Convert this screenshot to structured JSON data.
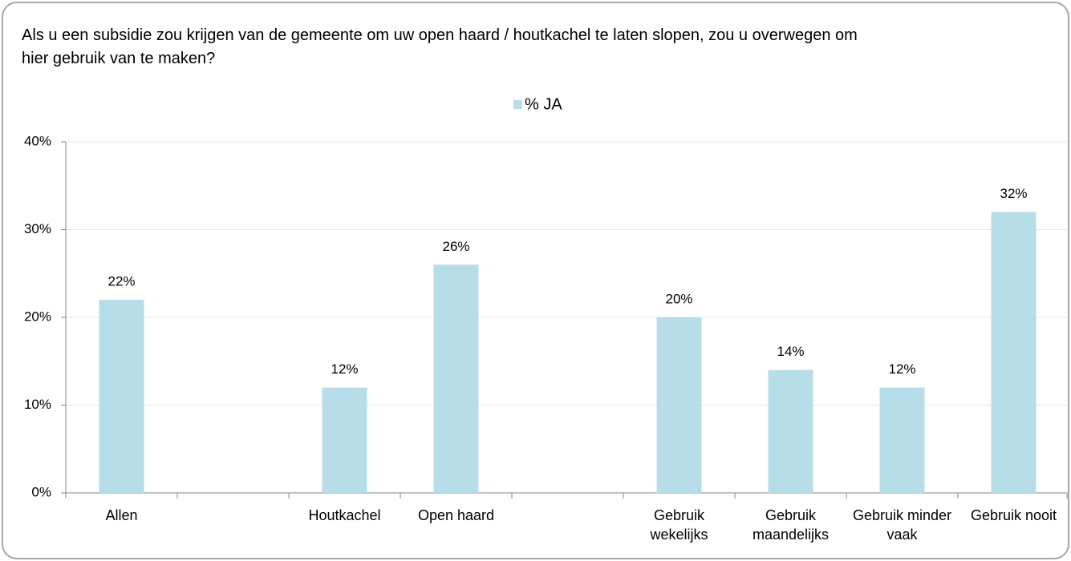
{
  "chart_data": {
    "type": "bar",
    "title": "Als u een subsidie zou krijgen van de gemeente om uw open haard / houtkachel te laten slopen, zou u overwegen om hier gebruik van te maken?",
    "categories": [
      "Allen",
      null,
      "Houtkachel",
      "Open haard",
      null,
      "Gebruik wekelijks",
      "Gebruik maandelijks",
      "Gebruik minder vaak",
      "Gebruik nooit"
    ],
    "series": [
      {
        "name": "% JA",
        "color": "#b7dde8",
        "values": [
          22,
          null,
          12,
          26,
          null,
          20,
          14,
          12,
          32
        ],
        "value_labels": [
          "22%",
          null,
          "12%",
          "26%",
          null,
          "20%",
          "14%",
          "12%",
          "32%"
        ]
      }
    ],
    "ylim": [
      0,
      40
    ],
    "yticks": [
      {
        "value": 0,
        "label": "0%"
      },
      {
        "value": 10,
        "label": "10%"
      },
      {
        "value": 20,
        "label": "20%"
      },
      {
        "value": 30,
        "label": "30%"
      },
      {
        "value": 40,
        "label": "40%"
      }
    ],
    "grid": true,
    "legend": "top"
  }
}
